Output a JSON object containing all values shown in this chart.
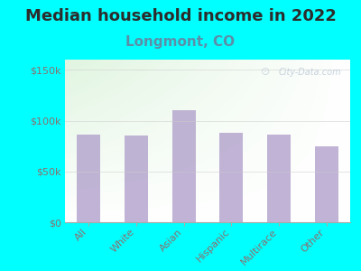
{
  "title": "Median household income in 2022",
  "subtitle": "Longmont, CO",
  "categories": [
    "All",
    "White",
    "Asian",
    "Hispanic",
    "Multirace",
    "Other"
  ],
  "values": [
    86000,
    85000,
    110000,
    88000,
    86500,
    75000
  ],
  "bar_color": "#b8a9d0",
  "background_outer": "#00ffff",
  "title_fontsize": 13,
  "subtitle_fontsize": 11,
  "subtitle_color": "#5b8fa8",
  "title_color": "#2c2c2c",
  "ytick_labels": [
    "$0",
    "$50k",
    "$100k",
    "$150k"
  ],
  "ytick_values": [
    0,
    50000,
    100000,
    150000
  ],
  "ylim": [
    0,
    160000
  ],
  "tick_color": "#8b7070",
  "watermark": "City-Data.com"
}
